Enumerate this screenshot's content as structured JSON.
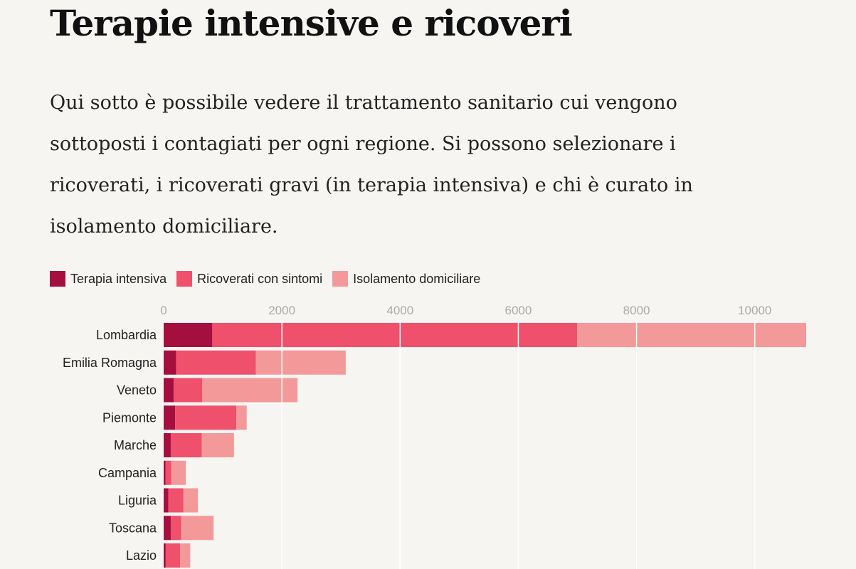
{
  "title": "Terapie intensive e ricoveri",
  "intro": "Qui sotto è possibile vedere il trattamento sanitario cui vengono sottoposti i contagiati per ogni regione. Si possono selezionare i ricoverati, i ricoverati gravi (in terapia intensiva) e chi è curato in isolamento domiciliare.",
  "chart_data": {
    "type": "bar",
    "orientation": "horizontal",
    "stacked": true,
    "categories": [
      "Lombardia",
      "Emilia Romagna",
      "Veneto",
      "Piemonte",
      "Marche",
      "Campania",
      "Liguria",
      "Toscana",
      "Lazio"
    ],
    "series": [
      {
        "name": "Terapia intensiva",
        "color": "#a50f3f",
        "values": [
          823,
          210,
          170,
          195,
          120,
          30,
          80,
          120,
          35
        ]
      },
      {
        "name": "Ricoverati con sintomi",
        "color": "#ef506c",
        "values": [
          6171,
          1350,
          480,
          1035,
          525,
          100,
          255,
          175,
          245
        ]
      },
      {
        "name": "Isolamento domiciliare",
        "color": "#f4999a",
        "values": [
          3876,
          1520,
          1615,
          175,
          545,
          245,
          245,
          550,
          170
        ]
      }
    ],
    "xticks": [
      0,
      2000,
      4000,
      6000,
      8000,
      10000
    ],
    "xlim": [
      0,
      10900
    ],
    "grid": true,
    "legend_position": "top-left"
  }
}
